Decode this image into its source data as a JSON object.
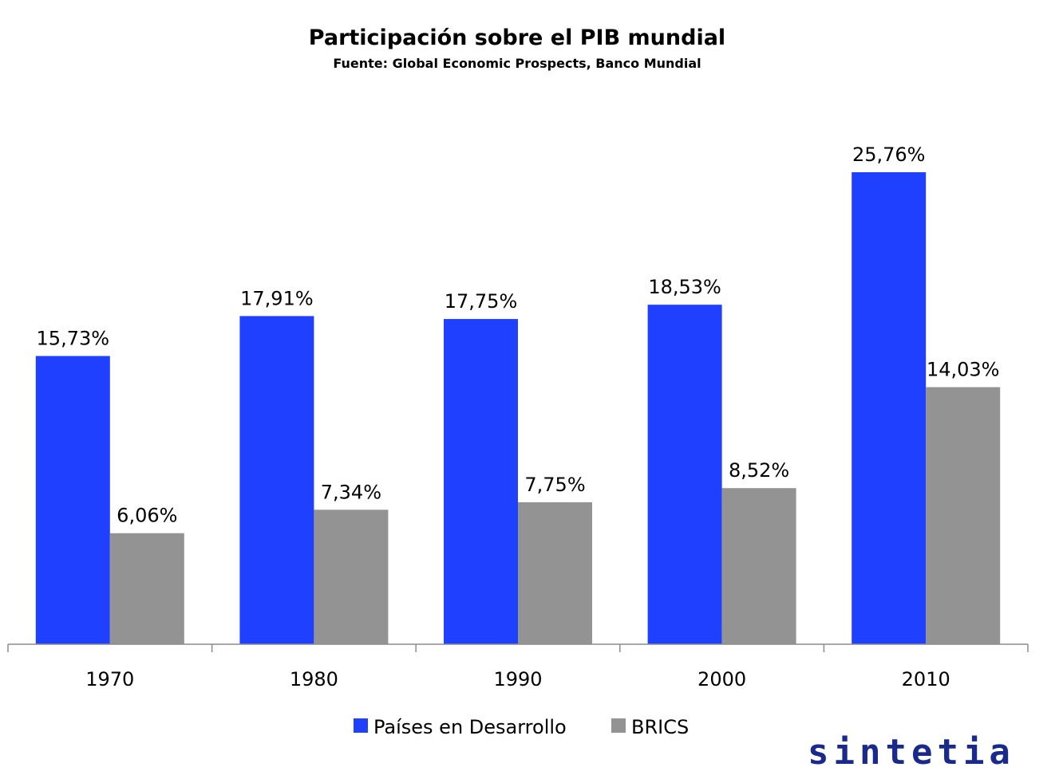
{
  "chart_data": {
    "type": "bar",
    "title": "Participación sobre el PIB mundial",
    "subtitle": "Fuente: Global Economic Prospects, Banco Mundial",
    "categories": [
      "1970",
      "1980",
      "1990",
      "2000",
      "2010"
    ],
    "series": [
      {
        "name": "Países en Desarrollo",
        "color": "#2040ff",
        "values": [
          15.73,
          17.91,
          17.75,
          18.53,
          25.76
        ],
        "labels": [
          "15,73%",
          "17,91%",
          "17,75%",
          "18,53%",
          "25,76%"
        ]
      },
      {
        "name": "BRICS",
        "color": "#939393",
        "values": [
          6.06,
          7.34,
          7.75,
          8.52,
          14.03
        ],
        "labels": [
          "6,06%",
          "7,34%",
          "7,75%",
          "8,52%",
          "14,03%"
        ]
      }
    ],
    "ylim": [
      0,
      25.76
    ],
    "grid": false,
    "legend_position": "bottom"
  },
  "watermark": "sintetia"
}
